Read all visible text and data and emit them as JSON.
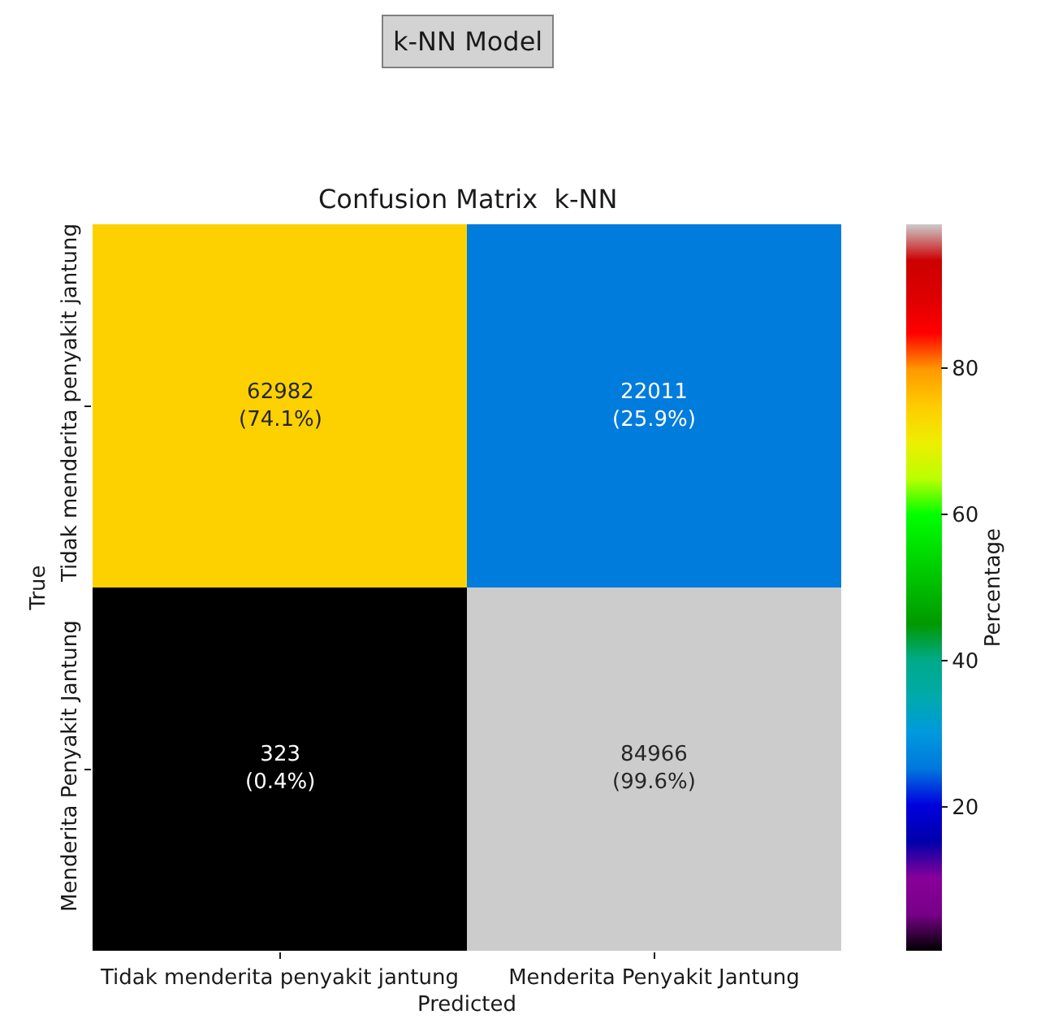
{
  "chart_data": {
    "type": "heatmap",
    "title": "k-NN Model",
    "subtitle": "Confusion Matrix  k-NN",
    "xlabel": "Predicted",
    "ylabel": "True",
    "clabel": "Percentage",
    "categories": [
      "Tidak menderita penyakit jantung",
      "Menderita Penyakit Jantung"
    ],
    "y_categories": [
      "Tidak menderita penyakit jantung",
      "Menderita Penyakit Jantung"
    ],
    "cells": [
      [
        74.1,
        25.9
      ],
      [
        0.4,
        99.6
      ]
    ],
    "cell_labels": [
      [
        "62982\n(74.1%)",
        "22011\n(25.9%)"
      ],
      [
        "323\n(0.4%)",
        "84966\n(99.6%)"
      ]
    ],
    "clim": [
      0.4,
      99.6
    ],
    "cticks": [
      20,
      40,
      60,
      80
    ]
  }
}
